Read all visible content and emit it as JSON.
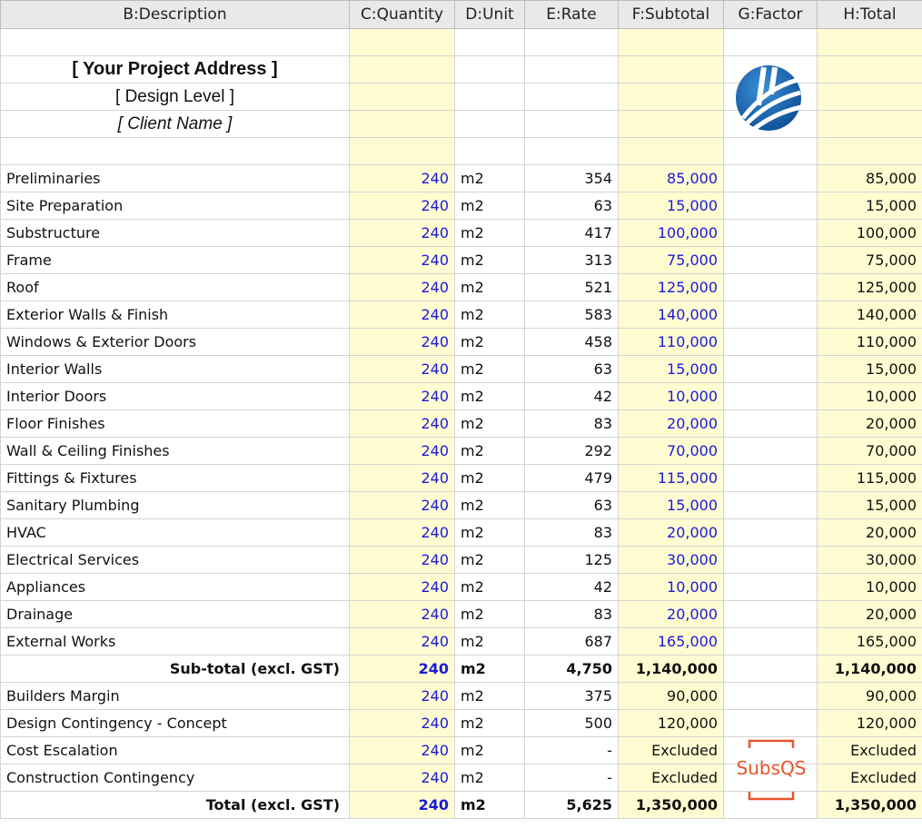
{
  "headers": [
    "B:Description",
    "C:Quantity",
    "D:Unit",
    "E:Rate",
    "F:Subtotal",
    "G:Factor",
    "H:Total"
  ],
  "project": {
    "address": "[ Your Project Address ]",
    "design_level": "[ Design Level ]",
    "client": "[ Client Name ]"
  },
  "rows": [
    {
      "desc": "Preliminaries",
      "qty": "240",
      "unit": "m2",
      "rate": "354",
      "subtotal": "85,000",
      "factor": "",
      "total": "85,000"
    },
    {
      "desc": "Site Preparation",
      "qty": "240",
      "unit": "m2",
      "rate": "63",
      "subtotal": "15,000",
      "factor": "",
      "total": "15,000"
    },
    {
      "desc": "Substructure",
      "qty": "240",
      "unit": "m2",
      "rate": "417",
      "subtotal": "100,000",
      "factor": "",
      "total": "100,000"
    },
    {
      "desc": "Frame",
      "qty": "240",
      "unit": "m2",
      "rate": "313",
      "subtotal": "75,000",
      "factor": "",
      "total": "75,000"
    },
    {
      "desc": "Roof",
      "qty": "240",
      "unit": "m2",
      "rate": "521",
      "subtotal": "125,000",
      "factor": "",
      "total": "125,000"
    },
    {
      "desc": "Exterior Walls & Finish",
      "qty": "240",
      "unit": "m2",
      "rate": "583",
      "subtotal": "140,000",
      "factor": "",
      "total": "140,000"
    },
    {
      "desc": "Windows & Exterior Doors",
      "qty": "240",
      "unit": "m2",
      "rate": "458",
      "subtotal": "110,000",
      "factor": "",
      "total": "110,000"
    },
    {
      "desc": "Interior Walls",
      "qty": "240",
      "unit": "m2",
      "rate": "63",
      "subtotal": "15,000",
      "factor": "",
      "total": "15,000"
    },
    {
      "desc": "Interior Doors",
      "qty": "240",
      "unit": "m2",
      "rate": "42",
      "subtotal": "10,000",
      "factor": "",
      "total": "10,000"
    },
    {
      "desc": "Floor Finishes",
      "qty": "240",
      "unit": "m2",
      "rate": "83",
      "subtotal": "20,000",
      "factor": "",
      "total": "20,000"
    },
    {
      "desc": "Wall & Ceiling Finishes",
      "qty": "240",
      "unit": "m2",
      "rate": "292",
      "subtotal": "70,000",
      "factor": "",
      "total": "70,000"
    },
    {
      "desc": "Fittings & Fixtures",
      "qty": "240",
      "unit": "m2",
      "rate": "479",
      "subtotal": "115,000",
      "factor": "",
      "total": "115,000"
    },
    {
      "desc": "Sanitary Plumbing",
      "qty": "240",
      "unit": "m2",
      "rate": "63",
      "subtotal": "15,000",
      "factor": "",
      "total": "15,000"
    },
    {
      "desc": "HVAC",
      "qty": "240",
      "unit": "m2",
      "rate": "83",
      "subtotal": "20,000",
      "factor": "",
      "total": "20,000"
    },
    {
      "desc": "Electrical Services",
      "qty": "240",
      "unit": "m2",
      "rate": "125",
      "subtotal": "30,000",
      "factor": "",
      "total": "30,000"
    },
    {
      "desc": "Appliances",
      "qty": "240",
      "unit": "m2",
      "rate": "42",
      "subtotal": "10,000",
      "factor": "",
      "total": "10,000"
    },
    {
      "desc": "Drainage",
      "qty": "240",
      "unit": "m2",
      "rate": "83",
      "subtotal": "20,000",
      "factor": "",
      "total": "20,000"
    },
    {
      "desc": "External Works",
      "qty": "240",
      "unit": "m2",
      "rate": "687",
      "subtotal": "165,000",
      "factor": "",
      "total": "165,000"
    }
  ],
  "subtotal_row": {
    "desc": "Sub-total (excl. GST)",
    "qty": "240",
    "unit": "m2",
    "rate": "4,750",
    "subtotal": "1,140,000",
    "factor": "",
    "total": "1,140,000"
  },
  "extra_rows": [
    {
      "desc": "Builders Margin",
      "qty": "240",
      "unit": "m2",
      "rate": "375",
      "subtotal": "90,000",
      "factor": "",
      "total": "90,000"
    },
    {
      "desc": "Design Contingency - Concept",
      "qty": "240",
      "unit": "m2",
      "rate": "500",
      "subtotal": "120,000",
      "factor": "",
      "total": "120,000"
    },
    {
      "desc": "Cost Escalation",
      "qty": "240",
      "unit": "m2",
      "rate": "-",
      "subtotal": "Excluded",
      "factor": "",
      "total": "Excluded"
    },
    {
      "desc": "Construction Contingency",
      "qty": "240",
      "unit": "m2",
      "rate": "-",
      "subtotal": "Excluded",
      "factor": "",
      "total": "Excluded"
    }
  ],
  "total_row": {
    "desc": "Total (excl. GST)",
    "qty": "240",
    "unit": "m2",
    "rate": "5,625",
    "subtotal": "1,350,000",
    "factor": "",
    "total": "1,350,000"
  },
  "brand": {
    "watermark_text": "SubsQS",
    "logo_icon": "company-logo-icon"
  },
  "colors": {
    "input_blue": "#1a1ad8",
    "yellow_cell": "#fffcd2",
    "header_bg": "#e9e9e9",
    "brand_orange": "#e8542a",
    "logo_blue": "#1560a8"
  }
}
